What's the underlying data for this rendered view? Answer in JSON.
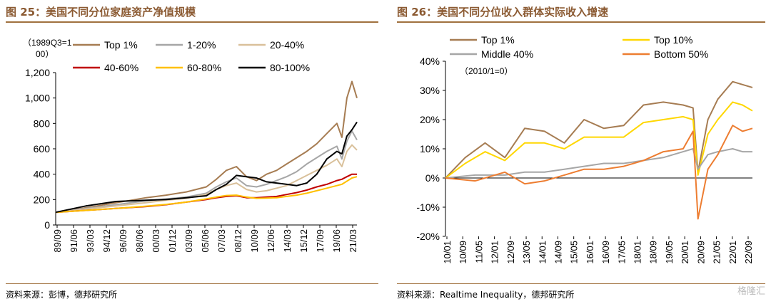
{
  "left_title": "图 25：美国不同分位家庭资产净值规模",
  "right_title": "图 26：美国不同分位收入群体实际收入增速",
  "left_source": "资料来源：彭博，德邦研究所",
  "right_source": "资料来源：Realtime Inequality，德邦研究所",
  "watermark": "格隆汇",
  "colors": {
    "title": "#8B5A32",
    "rule": "#A0713E",
    "top1": "#A67C52",
    "gray": "#A6A6A6",
    "tan": "#D9C09A",
    "red": "#C00000",
    "yellow": "#FFC000",
    "black": "#000000",
    "bright_yellow": "#FFD700",
    "orange": "#ED7D31"
  },
  "chart_data": [
    {
      "type": "line",
      "note": "（1989Q3=100）",
      "ylim": [
        0,
        1200
      ],
      "yticks": [
        "0",
        "200",
        "400",
        "600",
        "800",
        "1,000",
        "1,200"
      ],
      "xticks": [
        "89/09",
        "91/06",
        "93/03",
        "94/12",
        "96/09",
        "98/06",
        "00/03",
        "01/12",
        "03/09",
        "05/06",
        "07/03",
        "08/12",
        "10/09",
        "12/06",
        "14/03",
        "15/12",
        "17/09",
        "19/06",
        "21/03"
      ],
      "legend": [
        "Top 1%",
        "1-20%",
        "20-40%",
        "40-60%",
        "60-80%",
        "80-100%"
      ],
      "series": [
        {
          "name": "Top 1%",
          "color": "#A67C52",
          "points": [
            [
              0,
              100
            ],
            [
              12,
              135
            ],
            [
              24,
              175
            ],
            [
              36,
              215
            ],
            [
              44,
              235
            ],
            [
              52,
              260
            ],
            [
              60,
              300
            ],
            [
              64,
              360
            ],
            [
              68,
              430
            ],
            [
              72,
              460
            ],
            [
              76,
              380
            ],
            [
              80,
              350
            ],
            [
              84,
              400
            ],
            [
              88,
              430
            ],
            [
              92,
              480
            ],
            [
              96,
              530
            ],
            [
              100,
              580
            ],
            [
              104,
              640
            ],
            [
              108,
              720
            ],
            [
              112,
              800
            ],
            [
              114,
              690
            ],
            [
              116,
              1000
            ],
            [
              118,
              1130
            ],
            [
              120,
              1000
            ]
          ]
        },
        {
          "name": "1-20%",
          "color": "#A6A6A6",
          "points": [
            [
              0,
              100
            ],
            [
              12,
              130
            ],
            [
              24,
              160
            ],
            [
              36,
              190
            ],
            [
              44,
              205
            ],
            [
              52,
              220
            ],
            [
              60,
              250
            ],
            [
              64,
              300
            ],
            [
              68,
              340
            ],
            [
              72,
              370
            ],
            [
              76,
              310
            ],
            [
              80,
              300
            ],
            [
              84,
              320
            ],
            [
              88,
              350
            ],
            [
              92,
              380
            ],
            [
              96,
              420
            ],
            [
              100,
              480
            ],
            [
              104,
              530
            ],
            [
              108,
              580
            ],
            [
              112,
              620
            ],
            [
              114,
              520
            ],
            [
              116,
              660
            ],
            [
              118,
              740
            ],
            [
              120,
              670
            ]
          ]
        },
        {
          "name": "20-40%",
          "color": "#D9C09A",
          "points": [
            [
              0,
              100
            ],
            [
              12,
              125
            ],
            [
              24,
              150
            ],
            [
              36,
              175
            ],
            [
              44,
              195
            ],
            [
              52,
              210
            ],
            [
              60,
              240
            ],
            [
              64,
              280
            ],
            [
              68,
              310
            ],
            [
              72,
              330
            ],
            [
              76,
              280
            ],
            [
              80,
              260
            ],
            [
              84,
              270
            ],
            [
              88,
              290
            ],
            [
              92,
              310
            ],
            [
              96,
              350
            ],
            [
              100,
              390
            ],
            [
              104,
              430
            ],
            [
              108,
              470
            ],
            [
              112,
              520
            ],
            [
              114,
              460
            ],
            [
              116,
              580
            ],
            [
              118,
              630
            ],
            [
              120,
              590
            ]
          ]
        },
        {
          "name": "40-60%",
          "color": "#C00000",
          "points": [
            [
              0,
              100
            ],
            [
              12,
              115
            ],
            [
              24,
              130
            ],
            [
              36,
              145
            ],
            [
              44,
              160
            ],
            [
              52,
              180
            ],
            [
              60,
              200
            ],
            [
              64,
              215
            ],
            [
              68,
              225
            ],
            [
              72,
              230
            ],
            [
              76,
              215
            ],
            [
              80,
              215
            ],
            [
              84,
              220
            ],
            [
              88,
              225
            ],
            [
              92,
              240
            ],
            [
              96,
              255
            ],
            [
              100,
              275
            ],
            [
              104,
              300
            ],
            [
              108,
              320
            ],
            [
              112,
              350
            ],
            [
              114,
              360
            ],
            [
              116,
              380
            ],
            [
              118,
              400
            ],
            [
              120,
              400
            ]
          ]
        },
        {
          "name": "60-80%",
          "color": "#FFC000",
          "points": [
            [
              0,
              100
            ],
            [
              12,
              115
            ],
            [
              24,
              130
            ],
            [
              36,
              148
            ],
            [
              44,
              162
            ],
            [
              52,
              180
            ],
            [
              60,
              205
            ],
            [
              64,
              220
            ],
            [
              68,
              232
            ],
            [
              72,
              235
            ],
            [
              76,
              220
            ],
            [
              80,
              210
            ],
            [
              84,
              212
            ],
            [
              88,
              215
            ],
            [
              92,
              225
            ],
            [
              96,
              235
            ],
            [
              100,
              250
            ],
            [
              104,
              270
            ],
            [
              108,
              290
            ],
            [
              112,
              310
            ],
            [
              114,
              320
            ],
            [
              116,
              345
            ],
            [
              118,
              370
            ],
            [
              120,
              380
            ]
          ]
        },
        {
          "name": "80-100%",
          "color": "#000000",
          "points": [
            [
              0,
              100
            ],
            [
              12,
              150
            ],
            [
              24,
              185
            ],
            [
              36,
              195
            ],
            [
              44,
              200
            ],
            [
              52,
              215
            ],
            [
              60,
              230
            ],
            [
              64,
              280
            ],
            [
              68,
              320
            ],
            [
              72,
              390
            ],
            [
              76,
              380
            ],
            [
              80,
              370
            ],
            [
              84,
              340
            ],
            [
              88,
              330
            ],
            [
              92,
              320
            ],
            [
              96,
              310
            ],
            [
              100,
              330
            ],
            [
              104,
              400
            ],
            [
              108,
              520
            ],
            [
              112,
              580
            ],
            [
              114,
              560
            ],
            [
              116,
              700
            ],
            [
              118,
              750
            ],
            [
              120,
              810
            ]
          ]
        }
      ]
    },
    {
      "type": "line",
      "note": "（2010/1=0）",
      "ylim": [
        -20,
        40
      ],
      "yticks": [
        "-20%",
        "-10%",
        "0%",
        "10%",
        "20%",
        "30%",
        "40%"
      ],
      "xticks": [
        "10/01",
        "10/09",
        "11/05",
        "12/01",
        "12/09",
        "13/05",
        "14/01",
        "14/09",
        "15/05",
        "16/01",
        "16/09",
        "17/05",
        "18/01",
        "18/09",
        "19/05",
        "20/01",
        "20/09",
        "21/05",
        "22/01",
        "22/09"
      ],
      "legend": [
        "Top 1%",
        "Top 10%",
        "Middle 40%",
        "Bottom 50%"
      ],
      "series": [
        {
          "name": "Top 1%",
          "color": "#A67C52",
          "points": [
            [
              0,
              0
            ],
            [
              4,
              7
            ],
            [
              8,
              12
            ],
            [
              12,
              7
            ],
            [
              16,
              17
            ],
            [
              20,
              16
            ],
            [
              24,
              12
            ],
            [
              28,
              20
            ],
            [
              32,
              17
            ],
            [
              36,
              18
            ],
            [
              40,
              25
            ],
            [
              44,
              26
            ],
            [
              48,
              25
            ],
            [
              50,
              24
            ],
            [
              51,
              2
            ],
            [
              53,
              20
            ],
            [
              55,
              27
            ],
            [
              58,
              33
            ],
            [
              60,
              32
            ],
            [
              62,
              31
            ]
          ]
        },
        {
          "name": "Top 10%",
          "color": "#FFD700",
          "points": [
            [
              0,
              0
            ],
            [
              4,
              5
            ],
            [
              8,
              9
            ],
            [
              12,
              6
            ],
            [
              16,
              12
            ],
            [
              20,
              12
            ],
            [
              24,
              10
            ],
            [
              28,
              14
            ],
            [
              32,
              14
            ],
            [
              36,
              14
            ],
            [
              40,
              19
            ],
            [
              44,
              20
            ],
            [
              48,
              21
            ],
            [
              50,
              20
            ],
            [
              51,
              1
            ],
            [
              53,
              15
            ],
            [
              55,
              20
            ],
            [
              58,
              26
            ],
            [
              60,
              25
            ],
            [
              62,
              23
            ]
          ]
        },
        {
          "name": "Middle 40%",
          "color": "#A6A6A6",
          "points": [
            [
              0,
              0
            ],
            [
              6,
              1
            ],
            [
              12,
              1
            ],
            [
              16,
              2
            ],
            [
              20,
              2
            ],
            [
              24,
              3
            ],
            [
              28,
              4
            ],
            [
              32,
              5
            ],
            [
              36,
              5
            ],
            [
              40,
              6
            ],
            [
              44,
              7
            ],
            [
              48,
              9
            ],
            [
              50,
              10
            ],
            [
              51,
              3
            ],
            [
              53,
              8
            ],
            [
              55,
              9
            ],
            [
              58,
              10
            ],
            [
              60,
              9
            ],
            [
              62,
              9
            ]
          ]
        },
        {
          "name": "Bottom 50%",
          "color": "#ED7D31",
          "points": [
            [
              0,
              0
            ],
            [
              6,
              -1
            ],
            [
              12,
              2
            ],
            [
              16,
              -2
            ],
            [
              20,
              -1
            ],
            [
              24,
              1
            ],
            [
              28,
              3
            ],
            [
              32,
              3
            ],
            [
              36,
              4
            ],
            [
              40,
              6
            ],
            [
              44,
              9
            ],
            [
              48,
              10
            ],
            [
              50,
              16
            ],
            [
              51,
              -14
            ],
            [
              53,
              3
            ],
            [
              55,
              8
            ],
            [
              58,
              18
            ],
            [
              60,
              16
            ],
            [
              62,
              17
            ]
          ]
        }
      ]
    }
  ]
}
